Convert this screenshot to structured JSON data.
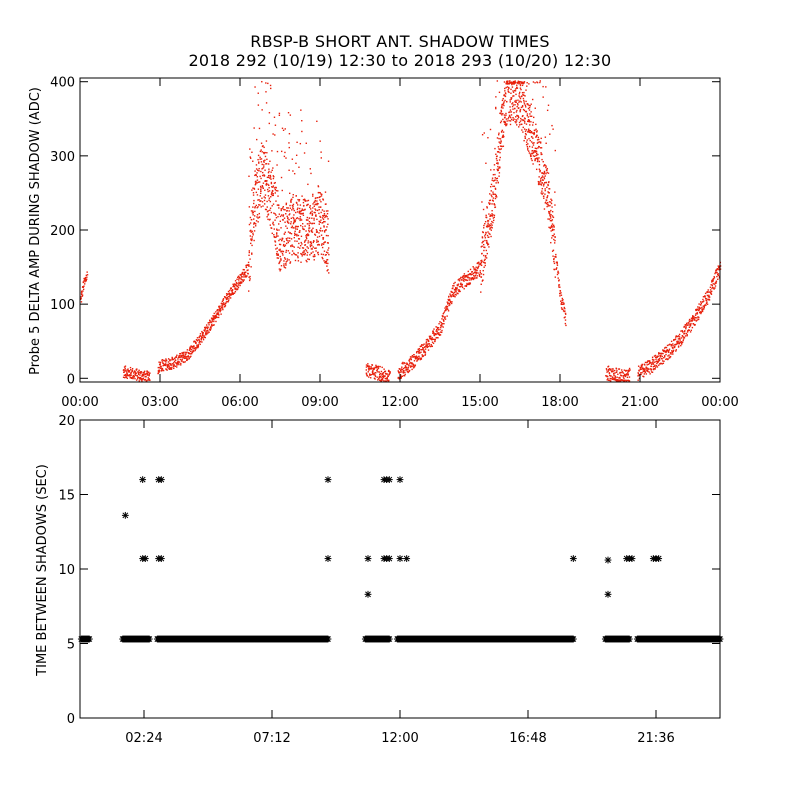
{
  "titles": {
    "line1": "RBSP-B SHORT ANT. SHADOW TIMES",
    "line2": "2018 292 (10/19) 12:30 to 2018 293 (10/20) 12:30"
  },
  "chart_data": [
    {
      "type": "scatter",
      "name": "delta-amp-panel",
      "ylabel": "Probe 5 DELTA AMP DURING SHADOW (ADC)",
      "xlabel": "",
      "x_unit": "hours",
      "xlim": [
        0,
        24
      ],
      "ylim": [
        -5,
        405
      ],
      "yticks": [
        0,
        100,
        200,
        300,
        400
      ],
      "xticks": [
        {
          "at": 0,
          "label": "00:00"
        },
        {
          "at": 3,
          "label": "03:00"
        },
        {
          "at": 6,
          "label": "06:00"
        },
        {
          "at": 9,
          "label": "09:00"
        },
        {
          "at": 12,
          "label": "12:00"
        },
        {
          "at": 15,
          "label": "15:00"
        },
        {
          "at": 18,
          "label": "18:00"
        },
        {
          "at": 21,
          "label": "21:00"
        },
        {
          "at": 24,
          "label": "00:00"
        }
      ],
      "color": "#e8200c",
      "envelope": [
        {
          "x": 0.0,
          "y": 105
        },
        {
          "x": 0.1,
          "y": 125
        },
        {
          "x": 0.25,
          "y": 140
        },
        {
          "x": 1.6,
          "y": 10
        },
        {
          "x": 2.2,
          "y": 5
        },
        {
          "x": 2.6,
          "y": 2
        },
        {
          "x": 3.0,
          "y": 18
        },
        {
          "x": 3.5,
          "y": 22
        },
        {
          "x": 4.0,
          "y": 32
        },
        {
          "x": 4.5,
          "y": 55
        },
        {
          "x": 5.0,
          "y": 80
        },
        {
          "x": 5.5,
          "y": 110
        },
        {
          "x": 6.0,
          "y": 135
        },
        {
          "x": 6.2,
          "y": 145
        },
        {
          "x": 6.3,
          "y": 150
        },
        {
          "x": 6.5,
          "y": 230
        },
        {
          "x": 6.8,
          "y": 280
        },
        {
          "x": 7.2,
          "y": 240
        },
        {
          "x": 7.5,
          "y": 185
        },
        {
          "x": 8.0,
          "y": 205
        },
        {
          "x": 8.5,
          "y": 200
        },
        {
          "x": 9.0,
          "y": 210
        },
        {
          "x": 9.3,
          "y": 185
        },
        {
          "x": 10.7,
          "y": 12
        },
        {
          "x": 11.2,
          "y": 8
        },
        {
          "x": 11.5,
          "y": 2
        },
        {
          "x": 12.0,
          "y": 10
        },
        {
          "x": 12.5,
          "y": 25
        },
        {
          "x": 13.0,
          "y": 45
        },
        {
          "x": 13.5,
          "y": 70
        },
        {
          "x": 14.0,
          "y": 120
        },
        {
          "x": 14.5,
          "y": 135
        },
        {
          "x": 15.0,
          "y": 150
        },
        {
          "x": 15.5,
          "y": 250
        },
        {
          "x": 15.8,
          "y": 340
        },
        {
          "x": 16.0,
          "y": 380
        },
        {
          "x": 16.5,
          "y": 370
        },
        {
          "x": 17.0,
          "y": 320
        },
        {
          "x": 17.5,
          "y": 250
        },
        {
          "x": 18.0,
          "y": 110
        },
        {
          "x": 18.2,
          "y": 80
        },
        {
          "x": 19.7,
          "y": 8
        },
        {
          "x": 20.3,
          "y": 3
        },
        {
          "x": 20.8,
          "y": 5
        },
        {
          "x": 21.3,
          "y": 15
        },
        {
          "x": 22.0,
          "y": 35
        },
        {
          "x": 22.5,
          "y": 55
        },
        {
          "x": 23.0,
          "y": 80
        },
        {
          "x": 23.5,
          "y": 110
        },
        {
          "x": 24.0,
          "y": 150
        }
      ],
      "segments": [
        [
          0.0,
          0.25
        ],
        [
          1.6,
          2.6
        ],
        [
          2.9,
          9.3
        ],
        [
          10.7,
          11.6
        ],
        [
          11.9,
          18.2
        ],
        [
          19.7,
          20.6
        ],
        [
          20.9,
          24.0
        ]
      ],
      "spread": [
        {
          "from": 0,
          "to": 6.3,
          "amp": 8
        },
        {
          "from": 6.3,
          "to": 9.3,
          "amp": 45
        },
        {
          "from": 9.3,
          "to": 15.0,
          "amp": 10
        },
        {
          "from": 15.0,
          "to": 17.8,
          "amp": 35
        },
        {
          "from": 17.8,
          "to": 24,
          "amp": 10
        }
      ]
    },
    {
      "type": "scatter",
      "name": "time-between-panel",
      "ylabel": "TIME BETWEEN SHADOWS (SEC)",
      "xlabel": "",
      "x_unit": "hours",
      "xlim": [
        0,
        24
      ],
      "ylim": [
        0,
        20
      ],
      "yticks": [
        0,
        5,
        10,
        15,
        20
      ],
      "xticks": [
        {
          "at": 2.4,
          "label": "02:24"
        },
        {
          "at": 7.2,
          "label": "07:12"
        },
        {
          "at": 12.0,
          "label": "12:00"
        },
        {
          "at": 16.8,
          "label": "16:48"
        },
        {
          "at": 21.6,
          "label": "21:36"
        }
      ],
      "marker": "asterisk",
      "color": "#000000",
      "baseline_value": 5.3,
      "baseline_segments": [
        [
          0.05,
          0.35
        ],
        [
          1.6,
          2.6
        ],
        [
          2.9,
          9.3
        ],
        [
          10.7,
          11.6
        ],
        [
          11.9,
          18.5
        ],
        [
          19.7,
          20.6
        ],
        [
          20.9,
          24.0
        ]
      ],
      "points": [
        {
          "x": 1.7,
          "y": 13.6
        },
        {
          "x": 2.35,
          "y": 10.7
        },
        {
          "x": 2.45,
          "y": 10.7
        },
        {
          "x": 2.35,
          "y": 16.0
        },
        {
          "x": 2.95,
          "y": 10.7
        },
        {
          "x": 3.05,
          "y": 10.7
        },
        {
          "x": 2.95,
          "y": 16.0
        },
        {
          "x": 3.05,
          "y": 16.0
        },
        {
          "x": 9.3,
          "y": 10.7
        },
        {
          "x": 9.3,
          "y": 16.0
        },
        {
          "x": 10.8,
          "y": 10.7
        },
        {
          "x": 10.8,
          "y": 8.3
        },
        {
          "x": 11.4,
          "y": 10.7
        },
        {
          "x": 11.5,
          "y": 10.7
        },
        {
          "x": 11.6,
          "y": 10.7
        },
        {
          "x": 11.4,
          "y": 16.0
        },
        {
          "x": 11.5,
          "y": 16.0
        },
        {
          "x": 11.6,
          "y": 16.0
        },
        {
          "x": 12.0,
          "y": 16.0
        },
        {
          "x": 12.0,
          "y": 10.7
        },
        {
          "x": 12.25,
          "y": 10.7
        },
        {
          "x": 18.5,
          "y": 10.7
        },
        {
          "x": 19.8,
          "y": 10.6
        },
        {
          "x": 19.8,
          "y": 8.3
        },
        {
          "x": 20.5,
          "y": 10.7
        },
        {
          "x": 20.6,
          "y": 10.7
        },
        {
          "x": 20.7,
          "y": 10.7
        },
        {
          "x": 21.5,
          "y": 10.7
        },
        {
          "x": 21.6,
          "y": 10.7
        },
        {
          "x": 21.7,
          "y": 10.7
        }
      ]
    }
  ]
}
